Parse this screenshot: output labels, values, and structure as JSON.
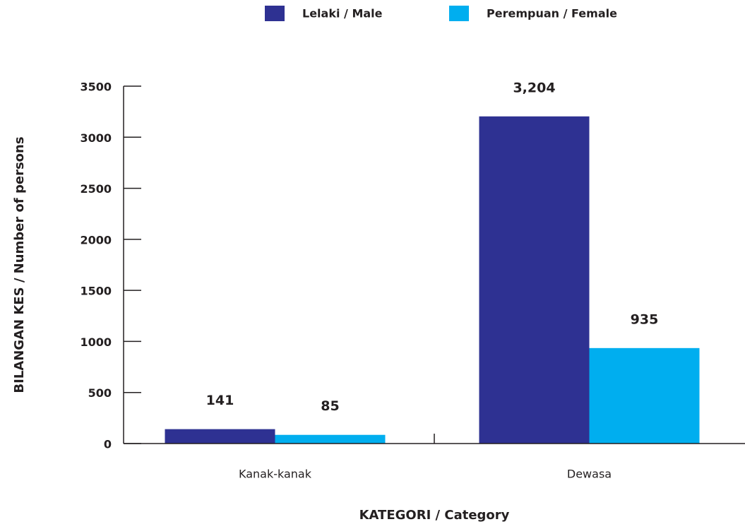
{
  "chart_data": {
    "type": "bar",
    "categories": [
      "Kanak-kanak",
      "Dewasa"
    ],
    "series": [
      {
        "name": "Lelaki / Male",
        "color": "#2e3192",
        "values": [
          141,
          3204
        ],
        "value_labels": [
          "141",
          "3,204"
        ]
      },
      {
        "name": "Perempuan / Female",
        "color": "#00aeef",
        "values": [
          85,
          935
        ],
        "value_labels": [
          "85",
          "935"
        ]
      }
    ],
    "ylim": [
      0,
      3500
    ],
    "yticks": [
      0,
      500,
      1000,
      1500,
      2000,
      2500,
      3000,
      3500
    ],
    "xlabel": "KATEGORI / Category",
    "ylabel": "BILANGAN KES / Number of persons",
    "legend": "top"
  }
}
